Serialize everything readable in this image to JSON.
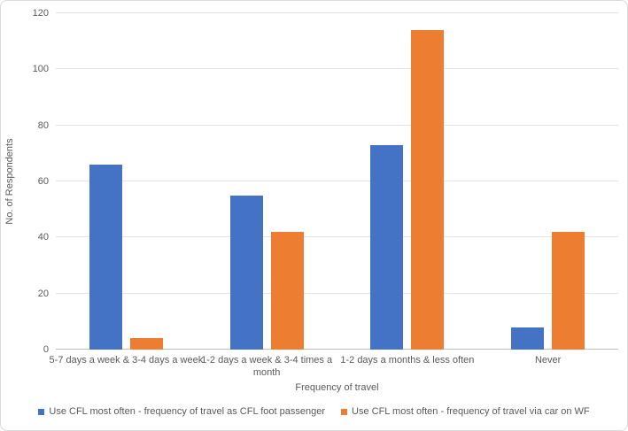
{
  "chart_data": {
    "type": "bar",
    "title": "",
    "xlabel": "Frequency of travel",
    "ylabel": "No. of Respondents",
    "categories": [
      "5-7 days a week & 3-4 days a week",
      "1-2 days a week & 3-4 times a month",
      "1-2 days a months & less often",
      "Never"
    ],
    "series": [
      {
        "name": "Use CFL most often - frequency of travel as CFL foot passenger",
        "color": "#4472C4",
        "values": [
          66,
          55,
          73,
          8
        ]
      },
      {
        "name": "Use CFL most often - frequency of travel via car on WF",
        "color": "#ED7D31",
        "values": [
          4,
          42,
          114,
          42
        ]
      }
    ],
    "ylim": [
      0,
      120
    ],
    "ytick_step": 20,
    "yticks": [
      0,
      20,
      40,
      60,
      80,
      100,
      120
    ],
    "grid": true,
    "legend_position": "bottom"
  },
  "colors": {
    "gridline": "#e3e3e3",
    "axis_line": "#bfbfbf",
    "text": "#595959",
    "background": "#ffffff",
    "border": "#d9d9d9"
  }
}
